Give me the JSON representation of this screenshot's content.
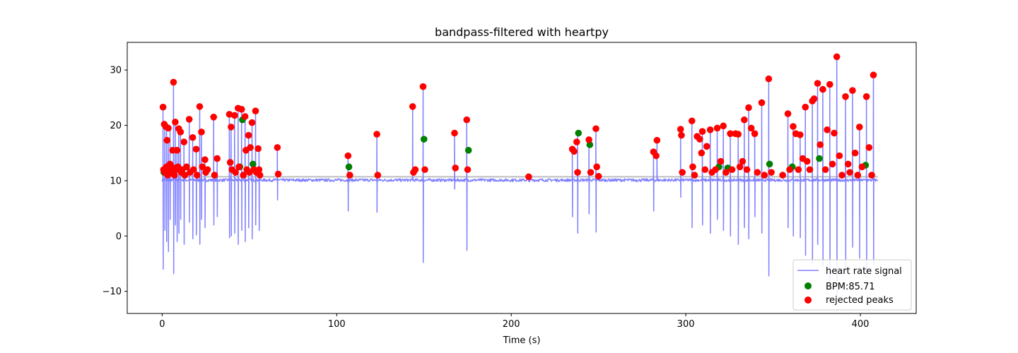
{
  "chart_data": {
    "type": "line",
    "title": "bandpass-filtered with heartpy",
    "xlabel": "Time (s)",
    "ylabel": "",
    "xlim": [
      -20,
      432
    ],
    "ylim": [
      -14,
      35
    ],
    "x_ticks": [
      0,
      100,
      200,
      300,
      400
    ],
    "y_ticks": [
      -10,
      0,
      10,
      20,
      30
    ],
    "grid": false,
    "legend_position": "lower-right",
    "colors": {
      "signal": "#8080ff",
      "accepted": "#008000",
      "rejected": "#ff0000",
      "baseline": "#bfbfbf"
    },
    "baseline": 10.7,
    "series": [
      {
        "name": "heart rate signal",
        "kind": "line",
        "spikes": [
          [
            0.5,
            23.3,
            -6.0
          ],
          [
            1.5,
            20.2,
            1.0
          ],
          [
            2.5,
            19.8,
            -1.0
          ],
          [
            3.5,
            17.3,
            -2.8
          ],
          [
            4.5,
            19.5,
            3.0
          ],
          [
            6.5,
            27.8,
            -6.8
          ],
          [
            7.5,
            20.6,
            2.0
          ],
          [
            8.5,
            15.5,
            -1.0
          ],
          [
            9.5,
            19.4,
            0.5
          ],
          [
            10.5,
            18.8,
            3.0
          ],
          [
            12.5,
            17.0,
            -1.5
          ],
          [
            15.5,
            21.1,
            2.5
          ],
          [
            17.5,
            17.8,
            -0.5
          ],
          [
            19.5,
            15.7,
            0.2
          ],
          [
            21.5,
            23.4,
            -1.5
          ],
          [
            22.5,
            18.8,
            3.0
          ],
          [
            24.5,
            13.8,
            1.5
          ],
          [
            29.5,
            21.5,
            2.0
          ],
          [
            31.5,
            14.0,
            3.5
          ],
          [
            38.5,
            22.0,
            -0.3
          ],
          [
            39.5,
            19.7,
            0.0
          ],
          [
            41.5,
            21.8,
            0.5
          ],
          [
            43.5,
            23.1,
            -1.5
          ],
          [
            45.5,
            22.9,
            1.0
          ],
          [
            47.5,
            21.6,
            -1.0
          ],
          [
            49.5,
            18.2,
            1.5
          ],
          [
            51.5,
            20.5,
            -0.5
          ],
          [
            53.5,
            22.6,
            2.0
          ],
          [
            55.5,
            15.8,
            1.0
          ],
          [
            66.0,
            16.0,
            6.5
          ],
          [
            106.5,
            14.5,
            4.5
          ],
          [
            123.0,
            18.4,
            4.3
          ],
          [
            143.5,
            23.4,
            11.0
          ],
          [
            149.5,
            27.0,
            -4.8
          ],
          [
            167.5,
            18.6,
            8.5
          ],
          [
            174.5,
            21.0,
            -2.6
          ],
          [
            210.0,
            10.7,
            9.8
          ],
          [
            235.0,
            15.7,
            3.5
          ],
          [
            238.0,
            18.6,
            0.5
          ],
          [
            244.5,
            17.4,
            4.0
          ],
          [
            248.5,
            19.4,
            0.7
          ],
          [
            281.5,
            15.2,
            4.5
          ],
          [
            283.5,
            17.3,
            10.0
          ],
          [
            297.0,
            19.3,
            7.0
          ],
          [
            303.5,
            20.8,
            1.5
          ],
          [
            309.5,
            18.9,
            2.0
          ],
          [
            314.0,
            19.2,
            0.5
          ],
          [
            318.0,
            19.5,
            3.0
          ],
          [
            321.5,
            19.9,
            1.0
          ],
          [
            325.5,
            18.5,
            0.0
          ],
          [
            330.0,
            18.4,
            -1.5
          ],
          [
            333.5,
            21.0,
            1.5
          ],
          [
            336.0,
            23.2,
            -0.5
          ],
          [
            339.5,
            18.5,
            3.5
          ],
          [
            343.5,
            24.1,
            0.5
          ],
          [
            347.5,
            28.4,
            -7.2
          ],
          [
            358.5,
            22.1,
            1.5
          ],
          [
            361.5,
            19.8,
            0.0
          ],
          [
            365.5,
            18.3,
            -0.3
          ],
          [
            368.5,
            23.3,
            -3.5
          ],
          [
            372.5,
            24.4,
            -5.0
          ],
          [
            375.5,
            27.6,
            -1.5
          ],
          [
            378.5,
            26.5,
            -5.5
          ],
          [
            382.5,
            27.4,
            -9.5
          ],
          [
            386.5,
            32.4,
            -11.0
          ],
          [
            391.5,
            25.2,
            -6.0
          ],
          [
            395.5,
            26.3,
            -2.0
          ],
          [
            399.5,
            19.7,
            -4.0
          ],
          [
            403.5,
            25.2,
            -7.5
          ],
          [
            407.5,
            29.1,
            -5.0
          ]
        ]
      },
      {
        "name": "BPM:85.71",
        "kind": "scatter",
        "x": [
          1.0,
          10.0,
          44.5,
          46.0,
          52.0,
          107.0,
          150.0,
          175.5,
          238.5,
          245.0,
          319.0,
          324.0,
          348.0,
          361.0,
          376.5,
          403.0
        ],
        "y": [
          11.5,
          12.0,
          12.5,
          21.0,
          13.0,
          12.5,
          17.5,
          15.5,
          18.6,
          16.5,
          12.5,
          12.3,
          13.0,
          12.5,
          14.0,
          12.8
        ]
      },
      {
        "name": "rejected peaks",
        "kind": "scatter",
        "x": [
          0.5,
          0.8,
          1.2,
          1.5,
          2.0,
          2.5,
          2.8,
          3.2,
          3.5,
          4.0,
          4.5,
          5.0,
          5.5,
          6.0,
          6.5,
          7.0,
          7.5,
          8.0,
          8.5,
          9.0,
          9.5,
          10.5,
          11.0,
          11.5,
          12.5,
          13.0,
          14.0,
          15.5,
          16.0,
          17.5,
          18.0,
          19.5,
          20.0,
          21.5,
          22.5,
          23.0,
          24.5,
          25.0,
          26.0,
          29.5,
          30.0,
          31.5,
          38.5,
          39.0,
          39.5,
          40.0,
          41.5,
          42.0,
          43.5,
          44.0,
          45.5,
          46.5,
          47.5,
          48.0,
          48.5,
          49.5,
          50.0,
          50.5,
          51.5,
          52.5,
          53.5,
          54.0,
          55.0,
          55.5,
          56.0,
          66.0,
          66.5,
          106.5,
          107.5,
          123.0,
          123.5,
          143.5,
          144.0,
          145.0,
          149.5,
          150.5,
          167.5,
          168.0,
          174.5,
          175.0,
          210.0,
          235.0,
          236.0,
          237.5,
          238.0,
          244.5,
          245.5,
          248.5,
          249.0,
          250.0,
          281.5,
          283.0,
          283.5,
          297.0,
          297.5,
          298.0,
          303.5,
          304.0,
          305.0,
          306.5,
          308.0,
          309.0,
          309.5,
          311.0,
          312.0,
          314.0,
          315.0,
          317.0,
          318.0,
          320.0,
          321.5,
          323.0,
          325.5,
          326.5,
          328.5,
          330.0,
          331.0,
          332.5,
          333.5,
          335.0,
          336.0,
          337.5,
          339.5,
          341.0,
          343.5,
          345.0,
          347.5,
          349.0,
          355.5,
          358.5,
          359.5,
          361.5,
          363.0,
          364.5,
          365.5,
          367.0,
          368.5,
          369.5,
          371.0,
          372.5,
          373.5,
          375.5,
          377.0,
          378.5,
          380.0,
          381.0,
          382.5,
          384.0,
          385.0,
          386.5,
          388.0,
          389.5,
          391.5,
          393.0,
          394.0,
          395.5,
          397.0,
          398.5,
          399.5,
          401.0,
          403.5,
          405.0,
          406.5,
          407.5
        ],
        "y": [
          23.3,
          12.0,
          20.2,
          11.5,
          19.8,
          12.5,
          17.3,
          11.0,
          19.5,
          12.0,
          13.0,
          11.5,
          12.5,
          15.5,
          27.8,
          11.0,
          20.6,
          12.0,
          15.5,
          12.5,
          19.4,
          18.8,
          11.5,
          12.0,
          17.0,
          11.0,
          12.5,
          21.1,
          11.5,
          17.8,
          12.0,
          15.7,
          11.0,
          23.4,
          18.8,
          12.5,
          13.8,
          11.5,
          12.0,
          21.5,
          11.0,
          14.0,
          22.0,
          13.3,
          19.7,
          12.0,
          21.8,
          11.5,
          23.1,
          12.5,
          22.9,
          11.0,
          21.6,
          15.5,
          12.0,
          18.2,
          11.5,
          16.0,
          20.5,
          12.0,
          22.6,
          11.5,
          15.8,
          12.0,
          11.0,
          16.0,
          11.2,
          14.5,
          11.0,
          18.4,
          11.0,
          23.4,
          11.5,
          12.0,
          27.0,
          12.0,
          18.6,
          12.3,
          21.0,
          12.0,
          10.7,
          15.7,
          15.3,
          17.0,
          11.5,
          17.4,
          11.5,
          19.4,
          12.5,
          10.8,
          15.2,
          14.5,
          17.3,
          19.3,
          18.2,
          11.5,
          20.8,
          12.5,
          11.0,
          18.0,
          17.5,
          15.0,
          18.9,
          12.0,
          16.2,
          19.2,
          11.5,
          12.0,
          19.5,
          13.5,
          19.9,
          11.5,
          18.5,
          12.0,
          18.5,
          18.4,
          12.5,
          13.5,
          21.0,
          12.0,
          23.2,
          19.5,
          18.5,
          11.5,
          24.1,
          11.0,
          28.4,
          11.5,
          11.0,
          22.1,
          12.0,
          19.8,
          18.5,
          12.0,
          18.3,
          14.0,
          23.3,
          13.5,
          12.0,
          24.4,
          24.8,
          27.6,
          16.5,
          26.5,
          12.0,
          19.2,
          27.4,
          13.0,
          18.6,
          32.4,
          14.5,
          11.0,
          25.2,
          13.0,
          11.5,
          26.3,
          15.0,
          11.0,
          19.7,
          12.5,
          25.2,
          16.0,
          11.0,
          29.1
        ]
      }
    ]
  }
}
